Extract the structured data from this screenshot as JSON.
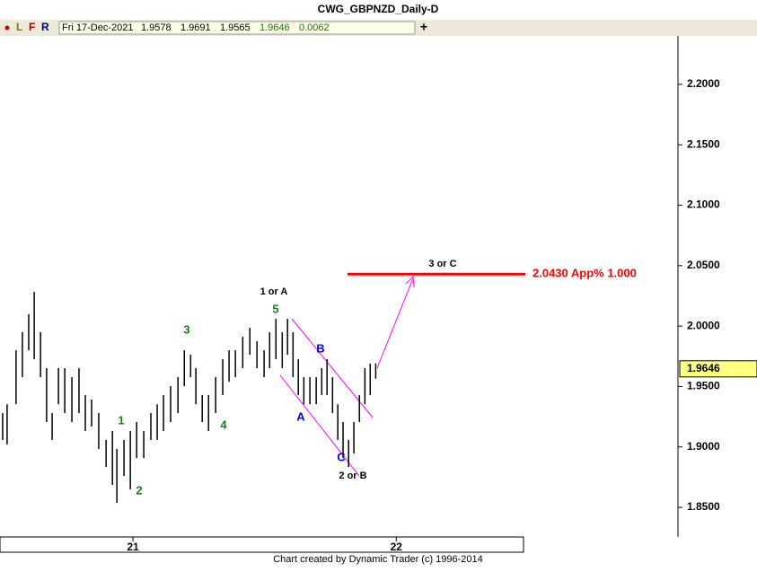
{
  "chart_data": {
    "type": "ohlc",
    "title": "CWG_GBPNZD_Daily-D",
    "toolbar": [
      "L",
      "F",
      "R"
    ],
    "info": {
      "date": "Fri 17-Dec-2021",
      "open": 1.9578,
      "high": 1.9691,
      "low": 1.9565,
      "close": 1.9646,
      "change": 0.0062
    },
    "footer": "Chart created by Dynamic Trader  (c) 1996-2014",
    "color": "#000000",
    "x": [
      2020.505,
      2020.522,
      2020.556,
      2020.58,
      2020.604,
      2020.625,
      2020.649,
      2020.672,
      2020.693,
      2020.717,
      2020.741,
      2020.768,
      2020.795,
      2020.819,
      2020.843,
      2020.87,
      2020.898,
      2020.922,
      2020.939,
      2020.966,
      2020.99,
      2021.014,
      2021.041,
      2021.068,
      2021.092,
      2021.116,
      2021.143,
      2021.171,
      2021.195,
      2021.219,
      2021.239,
      2021.263,
      2021.287,
      2021.314,
      2021.341,
      2021.365,
      2021.389,
      2021.417,
      2021.444,
      2021.471,
      2021.498,
      2021.519,
      2021.543,
      2021.567,
      2021.587,
      2021.608,
      2021.628,
      2021.649,
      2021.672,
      2021.696,
      2021.717,
      2021.737,
      2021.758,
      2021.778,
      2021.798,
      2021.819,
      2021.839,
      2021.86,
      2021.881,
      2021.901,
      2021.922
    ],
    "high": [
      1.928,
      1.9353,
      1.98,
      1.9949,
      2.0098,
      2.0283,
      1.9949,
      1.9652,
      1.928,
      1.9652,
      1.9652,
      1.9577,
      1.9652,
      1.9429,
      1.9392,
      1.928,
      1.9058,
      1.9132,
      1.8983,
      1.9058,
      1.9132,
      1.9206,
      1.9132,
      1.928,
      1.9353,
      1.9429,
      1.9503,
      1.9577,
      1.98,
      1.9763,
      1.9652,
      1.9429,
      1.9429,
      1.9577,
      1.9726,
      1.98,
      1.98,
      1.9912,
      1.9986,
      1.9875,
      1.98,
      1.9949,
      2.006,
      1.9949,
      2.006,
      1.9949,
      1.9726,
      1.9577,
      1.9577,
      1.9577,
      1.9652,
      1.9726,
      1.9577,
      1.9353,
      1.9206,
      1.9058,
      1.9206,
      1.9429,
      1.9652,
      1.9689,
      1.9691
    ],
    "low": [
      1.9058,
      1.9021,
      1.9353,
      1.9577,
      1.98,
      1.9726,
      1.9577,
      1.9206,
      1.9058,
      1.9353,
      1.928,
      1.9206,
      1.928,
      1.9132,
      1.9169,
      1.8983,
      1.8834,
      1.8686,
      1.8537,
      1.876,
      1.8649,
      1.8908,
      1.8908,
      1.9058,
      1.9058,
      1.9132,
      1.9206,
      1.928,
      1.9503,
      1.9577,
      1.9353,
      1.9206,
      1.9132,
      1.928,
      1.9429,
      1.954,
      1.9577,
      1.9652,
      1.9763,
      1.9652,
      1.9577,
      1.9652,
      1.9726,
      1.9652,
      1.9763,
      1.9577,
      1.9429,
      1.9353,
      1.9353,
      1.9353,
      1.9429,
      1.9429,
      1.928,
      1.9058,
      1.8908,
      1.8834,
      1.8946,
      1.9206,
      1.9353,
      1.9429,
      1.9565
    ],
    "xlim": [
      2020.495,
      2023.07
    ],
    "xticks": [
      {
        "value": 2021,
        "label": "21"
      },
      {
        "value": 2022,
        "label": "22"
      }
    ],
    "ylim": [
      1.8255,
      2.2401
    ],
    "yticks": [
      {
        "value": 1.85,
        "label": "1.8500"
      },
      {
        "value": 1.9,
        "label": "1.9000"
      },
      {
        "value": 1.95,
        "label": "1.9500"
      },
      {
        "value": 2.0,
        "label": "2.0000"
      },
      {
        "value": 2.05,
        "label": "2.0500"
      },
      {
        "value": 2.1,
        "label": "2.1000"
      },
      {
        "value": 2.15,
        "label": "2.1500"
      },
      {
        "value": 2.2,
        "label": "2.2000"
      }
    ],
    "target": {
      "value": 2.043,
      "label": "2.0430 App% 1.000",
      "color": "#ff0000"
    },
    "annotations": [
      {
        "text": "1 or A",
        "color": "#000000"
      },
      {
        "text": "5",
        "color": "#1a7a1a"
      },
      {
        "text": "3",
        "color": "#1a7a1a"
      },
      {
        "text": "B",
        "color": "#0000ff"
      },
      {
        "text": "1",
        "color": "#1a7a1a"
      },
      {
        "text": "4",
        "color": "#1a7a1a"
      },
      {
        "text": "A",
        "color": "#0000ff"
      },
      {
        "text": "C",
        "color": "#0000ff"
      },
      {
        "text": "2 or B",
        "color": "#000000"
      },
      {
        "text": "2",
        "color": "#1a7a1a"
      },
      {
        "text": "3 or C",
        "color": "#000000"
      }
    ]
  }
}
